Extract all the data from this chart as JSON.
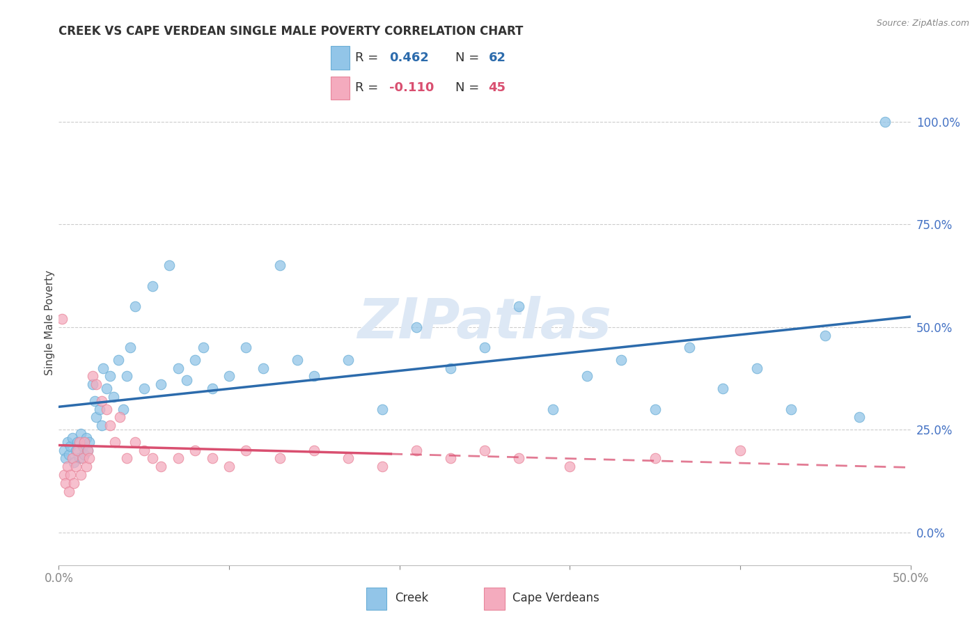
{
  "title": "CREEK VS CAPE VERDEAN SINGLE MALE POVERTY CORRELATION CHART",
  "source": "Source: ZipAtlas.com",
  "ylabel": "Single Male Poverty",
  "creek_color": "#92C5E8",
  "creek_edge_color": "#6AAED6",
  "cape_color": "#F4ABBE",
  "cape_edge_color": "#E8859A",
  "creek_line_color": "#2C6BAC",
  "cape_line_color": "#D94F70",
  "creek_R": 0.462,
  "creek_N": 62,
  "cape_R": -0.11,
  "cape_N": 45,
  "legend_blue": "#2C6BAC",
  "legend_pink": "#D94F70",
  "watermark": "ZIPatlas",
  "background_color": "#FFFFFF",
  "grid_color": "#CCCCCC",
  "right_tick_color": "#4472C4",
  "creek_x": [
    0.3,
    0.4,
    0.5,
    0.6,
    0.7,
    0.8,
    0.9,
    1.0,
    1.1,
    1.2,
    1.3,
    1.4,
    1.5,
    1.6,
    1.7,
    1.8,
    2.0,
    2.1,
    2.2,
    2.4,
    2.5,
    2.6,
    2.8,
    3.0,
    3.2,
    3.5,
    3.8,
    4.0,
    4.2,
    4.5,
    5.0,
    5.5,
    6.0,
    6.5,
    7.0,
    7.5,
    8.0,
    8.5,
    9.0,
    10.0,
    11.0,
    12.0,
    13.0,
    14.0,
    15.0,
    17.0,
    19.0,
    21.0,
    23.0,
    25.0,
    27.0,
    29.0,
    31.0,
    33.0,
    35.0,
    37.0,
    39.0,
    41.0,
    43.0,
    45.0,
    47.0,
    48.5
  ],
  "creek_y": [
    20.0,
    18.0,
    22.0,
    19.0,
    21.0,
    23.0,
    17.0,
    20.0,
    22.0,
    18.0,
    24.0,
    21.0,
    19.0,
    23.0,
    20.0,
    22.0,
    36.0,
    32.0,
    28.0,
    30.0,
    26.0,
    40.0,
    35.0,
    38.0,
    33.0,
    42.0,
    30.0,
    38.0,
    45.0,
    55.0,
    35.0,
    60.0,
    36.0,
    65.0,
    40.0,
    37.0,
    42.0,
    45.0,
    35.0,
    38.0,
    45.0,
    40.0,
    65.0,
    42.0,
    38.0,
    42.0,
    30.0,
    50.0,
    40.0,
    45.0,
    55.0,
    30.0,
    38.0,
    42.0,
    30.0,
    45.0,
    35.0,
    40.0,
    30.0,
    48.0,
    28.0,
    100.0
  ],
  "cape_x": [
    0.2,
    0.3,
    0.4,
    0.5,
    0.6,
    0.7,
    0.8,
    0.9,
    1.0,
    1.1,
    1.2,
    1.3,
    1.4,
    1.5,
    1.6,
    1.7,
    1.8,
    2.0,
    2.2,
    2.5,
    2.8,
    3.0,
    3.3,
    3.6,
    4.0,
    4.5,
    5.0,
    5.5,
    6.0,
    7.0,
    8.0,
    9.0,
    10.0,
    11.0,
    13.0,
    15.0,
    17.0,
    19.0,
    21.0,
    23.0,
    25.0,
    27.0,
    30.0,
    35.0,
    40.0
  ],
  "cape_y": [
    52.0,
    14.0,
    12.0,
    16.0,
    10.0,
    14.0,
    18.0,
    12.0,
    16.0,
    20.0,
    22.0,
    14.0,
    18.0,
    22.0,
    16.0,
    20.0,
    18.0,
    38.0,
    36.0,
    32.0,
    30.0,
    26.0,
    22.0,
    28.0,
    18.0,
    22.0,
    20.0,
    18.0,
    16.0,
    18.0,
    20.0,
    18.0,
    16.0,
    20.0,
    18.0,
    20.0,
    18.0,
    16.0,
    20.0,
    18.0,
    20.0,
    18.0,
    16.0,
    18.0,
    20.0
  ]
}
